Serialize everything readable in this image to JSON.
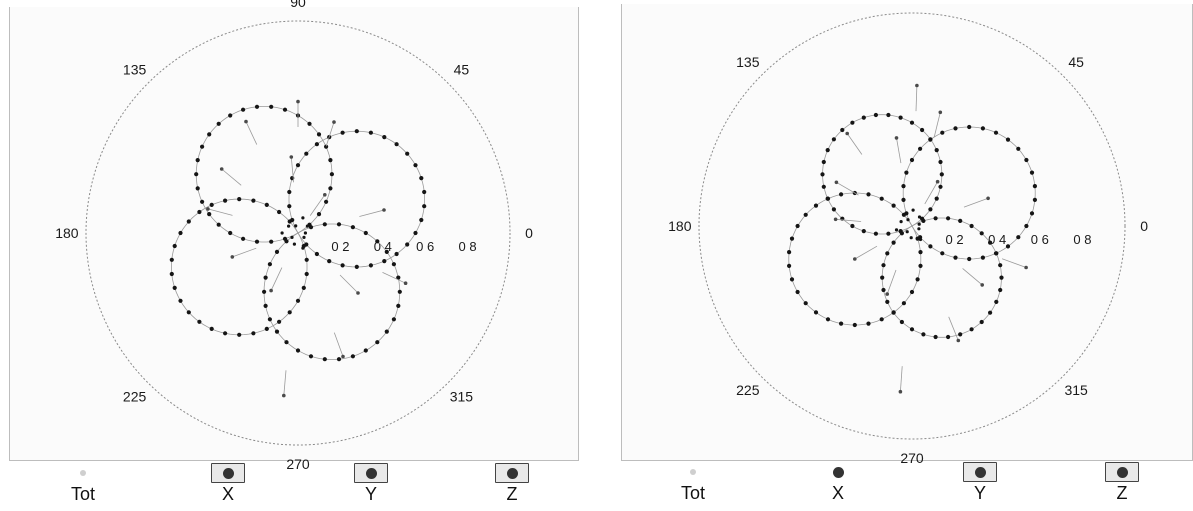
{
  "colors": {
    "background": "#ffffff",
    "frame": "#bdbdbd",
    "outer_circle": "#8a8a8a",
    "curve": "#9a9a9a",
    "point": "#151515",
    "tot_dot": "#cfcfcf",
    "legend_dot": "#333333"
  },
  "legend": {
    "items": [
      {
        "label": "Tot",
        "icon": "tot-dot-icon"
      },
      {
        "label": "X",
        "icon": "x-dot-icon"
      },
      {
        "label": "Y",
        "icon": "y-dot-icon"
      },
      {
        "label": "Z",
        "icon": "z-dot-icon"
      }
    ]
  },
  "chart_data": [
    {
      "type": "scatter",
      "polar": true,
      "angle_ticks": [
        "0",
        "45",
        "90",
        "135",
        "180",
        "225",
        "270",
        "315"
      ],
      "radial_ticks": [
        "0 2",
        "0 4",
        "0 6",
        "0 8"
      ],
      "rlim": [
        0,
        1
      ],
      "grid": false,
      "legend_position": "bottom",
      "series": [
        {
          "name": "X",
          "shape": "cosine-lobe",
          "lobe_directions_deg": [
            30,
            210
          ],
          "peak": 0.64,
          "point_spacing_deg": 6
        },
        {
          "name": "Y",
          "shape": "cosine-lobe",
          "lobe_directions_deg": [
            120,
            300
          ],
          "peak": 0.64,
          "point_spacing_deg": 6
        },
        {
          "name": "Z",
          "shape": "scattered-stems",
          "points": [
            {
              "angle": 90,
              "r": 0.62
            },
            {
              "angle": 95,
              "r": 0.36
            },
            {
              "angle": 115,
              "r": 0.58
            },
            {
              "angle": 140,
              "r": 0.47
            },
            {
              "angle": 165,
              "r": 0.44
            },
            {
              "angle": 200,
              "r": 0.33
            },
            {
              "angle": 245,
              "r": 0.3
            },
            {
              "angle": 265,
              "r": 0.77
            },
            {
              "angle": 290,
              "r": 0.62
            },
            {
              "angle": 315,
              "r": 0.4
            },
            {
              "angle": 335,
              "r": 0.56
            },
            {
              "angle": 15,
              "r": 0.42
            },
            {
              "angle": 55,
              "r": 0.22
            },
            {
              "angle": 72,
              "r": 0.55
            }
          ]
        }
      ]
    },
    {
      "type": "scatter",
      "polar": true,
      "angle_ticks": [
        "0",
        "45",
        "90",
        "135",
        "180",
        "225",
        "270",
        "315"
      ],
      "radial_ticks": [
        "0 2",
        "0 4",
        "0 6",
        "0 8"
      ],
      "rlim": [
        0,
        1
      ],
      "grid": false,
      "legend_position": "bottom",
      "series": [
        {
          "name": "X",
          "shape": "cosine-lobe",
          "lobe_directions_deg": [
            30,
            210
          ],
          "peak": 0.62,
          "point_spacing_deg": 6
        },
        {
          "name": "Y",
          "shape": "cosine-lobe",
          "lobe_directions_deg": [
            120,
            300
          ],
          "peak": 0.56,
          "point_spacing_deg": 6
        },
        {
          "name": "Z",
          "shape": "scattered-stems",
          "points": [
            {
              "angle": 88,
              "r": 0.66
            },
            {
              "angle": 100,
              "r": 0.42
            },
            {
              "angle": 125,
              "r": 0.53
            },
            {
              "angle": 150,
              "r": 0.41
            },
            {
              "angle": 175,
              "r": 0.36
            },
            {
              "angle": 210,
              "r": 0.31
            },
            {
              "angle": 250,
              "r": 0.34
            },
            {
              "angle": 266,
              "r": 0.78
            },
            {
              "angle": 292,
              "r": 0.58
            },
            {
              "angle": 320,
              "r": 0.43
            },
            {
              "angle": 340,
              "r": 0.57
            },
            {
              "angle": 20,
              "r": 0.38
            },
            {
              "angle": 60,
              "r": 0.24
            },
            {
              "angle": 76,
              "r": 0.55
            }
          ]
        }
      ]
    }
  ]
}
